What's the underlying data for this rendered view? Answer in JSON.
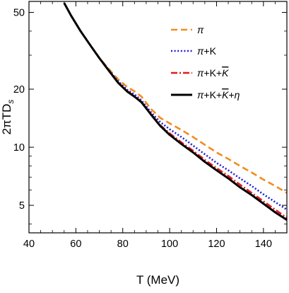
{
  "chart_data": {
    "type": "line",
    "xlabel": "T (MeV)",
    "ylabel": "2πTD",
    "ylabel_sub": "s",
    "xlim": [
      40,
      150
    ],
    "ylim": [
      3.6,
      57
    ],
    "yscale": "log",
    "grid": false,
    "legend_position": "top-right",
    "x_ticks": [
      40,
      60,
      80,
      100,
      120,
      140
    ],
    "y_ticks": [
      5,
      10,
      20,
      50
    ],
    "series": [
      {
        "name": "π",
        "legend_parts": [
          {
            "t": "π",
            "i": true
          }
        ],
        "color": "#f28c1e",
        "style": "dashed",
        "x": [
          55,
          58,
          62,
          66,
          70,
          74,
          78,
          82,
          85,
          88,
          92,
          96,
          100,
          105,
          110,
          115,
          120,
          125,
          130,
          135,
          140,
          145,
          150
        ],
        "y": [
          56,
          48,
          40,
          34,
          29,
          25.5,
          22.5,
          20.5,
          19.5,
          18.3,
          15.8,
          14.2,
          13.3,
          12.3,
          11.3,
          10.3,
          9.4,
          8.7,
          8.0,
          7.4,
          6.8,
          6.3,
          5.8
        ]
      },
      {
        "name": "π+K",
        "legend_parts": [
          {
            "t": "π",
            "i": true
          },
          {
            "t": "+K"
          }
        ],
        "color": "#1f1fd6",
        "style": "dotted",
        "x": [
          55,
          58,
          62,
          66,
          70,
          74,
          78,
          82,
          85,
          88,
          92,
          96,
          100,
          105,
          110,
          115,
          120,
          125,
          130,
          135,
          140,
          145,
          150
        ],
        "y": [
          56,
          48,
          40,
          34,
          29,
          25.2,
          22,
          19.8,
          18.8,
          17.5,
          15.2,
          13.5,
          12.4,
          11.3,
          10.2,
          9.2,
          8.3,
          7.6,
          6.9,
          6.3,
          5.7,
          5.2,
          4.75
        ]
      },
      {
        "name": "π+K+K̅",
        "legend_parts": [
          {
            "t": "π",
            "i": true
          },
          {
            "t": "+K+"
          },
          {
            "t": "K",
            "i": true,
            "bar": true
          }
        ],
        "color": "#e01b1b",
        "style": "dashdot",
        "x": [
          55,
          58,
          62,
          66,
          70,
          74,
          78,
          82,
          85,
          88,
          92,
          96,
          100,
          105,
          110,
          115,
          120,
          125,
          130,
          135,
          140,
          145,
          150
        ],
        "y": [
          56,
          48,
          40,
          34,
          29,
          25,
          21.7,
          19.5,
          18.4,
          17.2,
          14.9,
          13.0,
          11.8,
          10.6,
          9.6,
          8.6,
          7.8,
          7.1,
          6.4,
          5.8,
          5.25,
          4.75,
          4.3
        ]
      },
      {
        "name": "π+K+K̅+η",
        "legend_parts": [
          {
            "t": "π",
            "i": true
          },
          {
            "t": "+K+"
          },
          {
            "t": "K",
            "i": true,
            "bar": true
          },
          {
            "t": "+"
          },
          {
            "t": "η",
            "i": true
          }
        ],
        "color": "#000000",
        "style": "solid",
        "x": [
          55,
          58,
          62,
          66,
          70,
          74,
          78,
          82,
          85,
          88,
          92,
          96,
          100,
          105,
          110,
          115,
          120,
          125,
          130,
          135,
          140,
          145,
          150
        ],
        "y": [
          56,
          48,
          40,
          34,
          29,
          25,
          21.6,
          19.4,
          18.3,
          17.1,
          14.8,
          12.9,
          11.6,
          10.4,
          9.4,
          8.4,
          7.6,
          6.9,
          6.2,
          5.65,
          5.1,
          4.6,
          4.2
        ]
      }
    ]
  }
}
